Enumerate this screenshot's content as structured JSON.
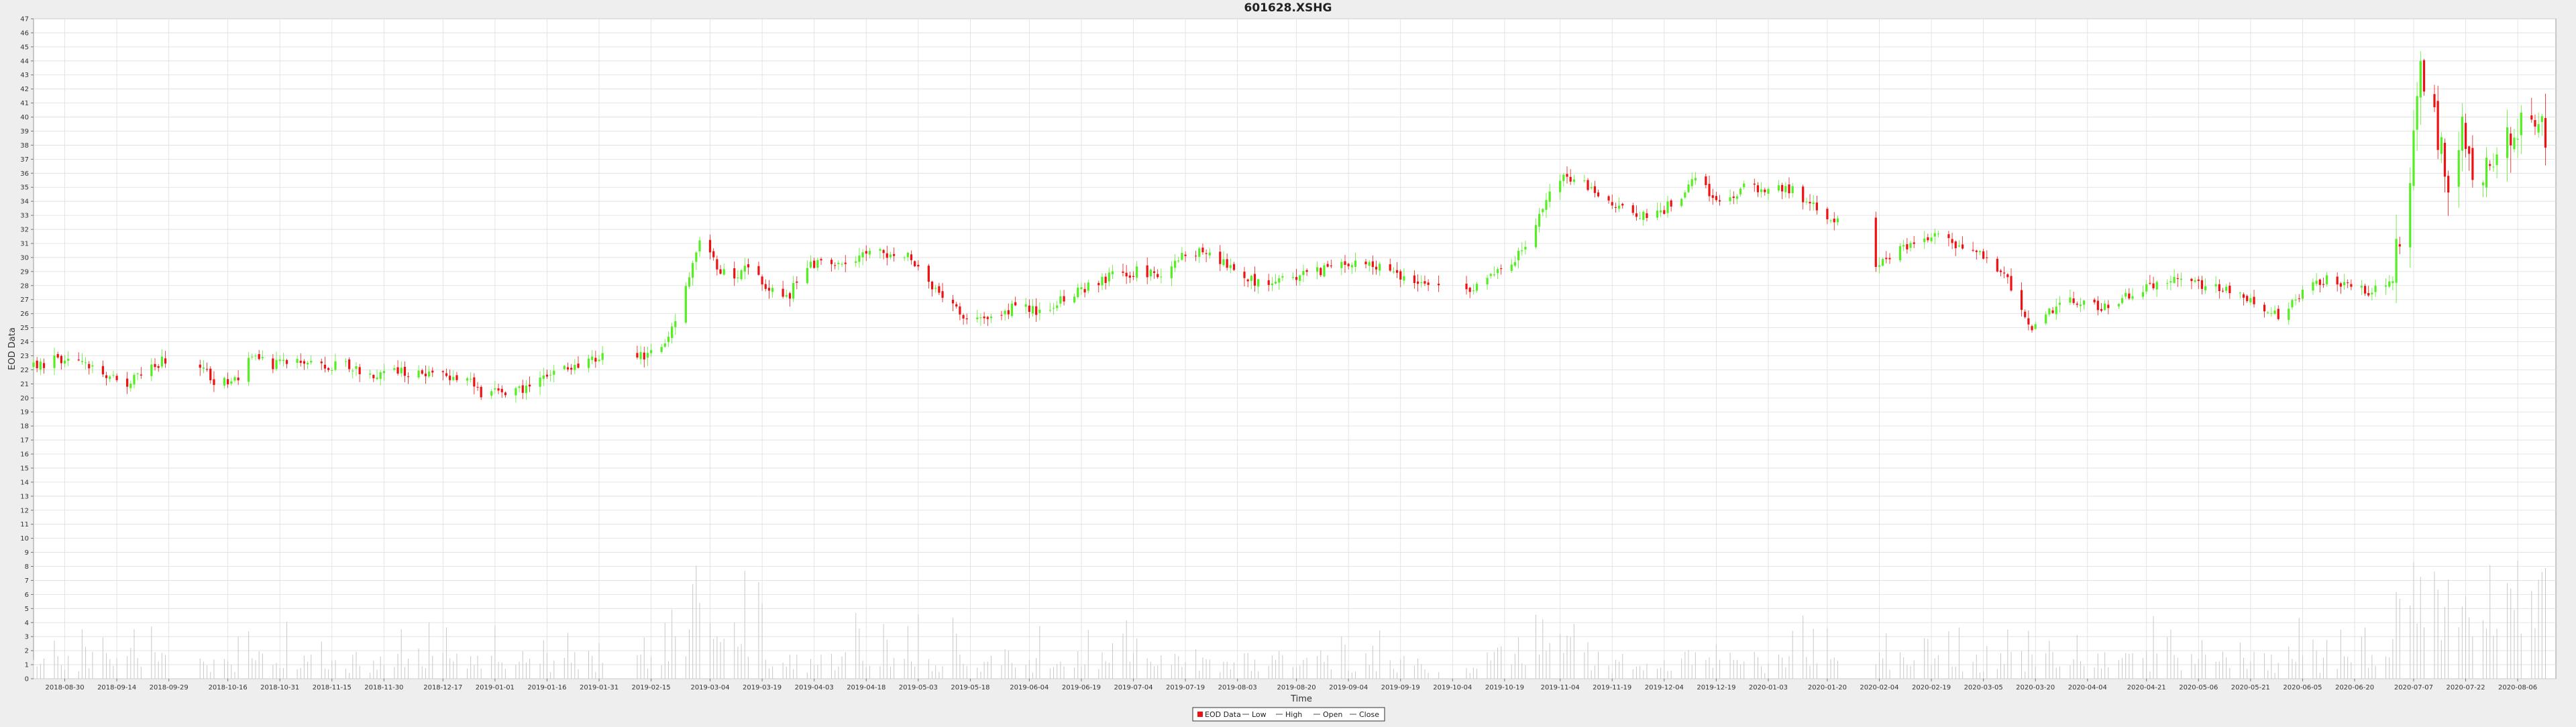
{
  "chart_data": {
    "type": "candlestick",
    "title": "601628.XSHG",
    "xlabel": "Time",
    "ylabel": "EOD Data",
    "ylim": [
      0,
      47
    ],
    "y_ticks": [
      0,
      1,
      2,
      3,
      4,
      5,
      6,
      7,
      8,
      9,
      10,
      11,
      12,
      13,
      14,
      15,
      16,
      17,
      18,
      19,
      20,
      21,
      22,
      23,
      24,
      25,
      26,
      27,
      28,
      29,
      30,
      31,
      32,
      33,
      34,
      35,
      36,
      37,
      38,
      39,
      40,
      41,
      42,
      43,
      44,
      45,
      46,
      47
    ],
    "grid": true,
    "x_tick_labels": [
      "2018-08-30",
      "2018-09-14",
      "2018-09-29",
      "2018-10-16",
      "2018-10-31",
      "2018-11-15",
      "2018-11-30",
      "2018-12-17",
      "2019-01-01",
      "2019-01-16",
      "2019-01-31",
      "2019-02-15",
      "2019-03-04",
      "2019-03-19",
      "2019-04-03",
      "2019-04-18",
      "2019-05-03",
      "2019-05-18",
      "2019-06-04",
      "2019-06-19",
      "2019-07-04",
      "2019-07-19",
      "2019-08-03",
      "2019-08-20",
      "2019-09-04",
      "2019-09-19",
      "2019-10-04",
      "2019-10-19",
      "2019-11-04",
      "2019-11-19",
      "2019-12-04",
      "2019-12-19",
      "2020-01-03",
      "2020-01-20",
      "2020-02-04",
      "2020-02-19",
      "2020-03-05",
      "2020-03-20",
      "2020-04-04",
      "2020-04-21",
      "2020-05-06",
      "2020-05-21",
      "2020-06-05",
      "2020-06-20",
      "2020-07-07",
      "2020-07-22",
      "2020-08-06"
    ],
    "close_path": [
      [
        "2018-08-21",
        22.2
      ],
      [
        "2018-08-27",
        22.7
      ],
      [
        "2018-09-03",
        22.5
      ],
      [
        "2018-09-10",
        21.6
      ],
      [
        "2018-09-17",
        21.0
      ],
      [
        "2018-09-21",
        21.6
      ],
      [
        "2018-09-28",
        22.8
      ],
      [
        "2018-10-08",
        22.4
      ],
      [
        "2018-10-12",
        21.2
      ],
      [
        "2018-10-19",
        21.4
      ],
      [
        "2018-10-22",
        23.2
      ],
      [
        "2018-10-29",
        22.4
      ],
      [
        "2018-11-05",
        22.6
      ],
      [
        "2018-11-12",
        22.2
      ],
      [
        "2018-11-19",
        22.5
      ],
      [
        "2018-11-26",
        21.6
      ],
      [
        "2018-12-03",
        22.1
      ],
      [
        "2018-12-10",
        21.7
      ],
      [
        "2018-12-17",
        21.5
      ],
      [
        "2018-12-24",
        21.4
      ],
      [
        "2018-12-28",
        20.4
      ],
      [
        "2019-01-04",
        20.3
      ],
      [
        "2019-01-11",
        20.6
      ],
      [
        "2019-01-18",
        21.8
      ],
      [
        "2019-01-25",
        22.2
      ],
      [
        "2019-02-01",
        22.9
      ],
      [
        "2019-02-11",
        22.9
      ],
      [
        "2019-02-18",
        23.5
      ],
      [
        "2019-02-22",
        25.5
      ],
      [
        "2019-02-25",
        28.0
      ],
      [
        "2019-03-01",
        31.0
      ],
      [
        "2019-03-07",
        29.0
      ],
      [
        "2019-03-12",
        28.6
      ],
      [
        "2019-03-15",
        29.5
      ],
      [
        "2019-03-22",
        27.5
      ],
      [
        "2019-03-26",
        27.0
      ],
      [
        "2019-04-01",
        29.5
      ],
      [
        "2019-04-08",
        29.8
      ],
      [
        "2019-04-12",
        29.5
      ],
      [
        "2019-04-19",
        30.5
      ],
      [
        "2019-04-26",
        30.0
      ],
      [
        "2019-04-30",
        30.3
      ],
      [
        "2019-05-06",
        28.5
      ],
      [
        "2019-05-10",
        26.8
      ],
      [
        "2019-05-17",
        25.8
      ],
      [
        "2019-05-24",
        25.5
      ],
      [
        "2019-05-31",
        26.5
      ],
      [
        "2019-06-06",
        26.2
      ],
      [
        "2019-06-14",
        27.0
      ],
      [
        "2019-06-21",
        28.0
      ],
      [
        "2019-06-28",
        28.7
      ],
      [
        "2019-07-05",
        29.0
      ],
      [
        "2019-07-12",
        28.8
      ],
      [
        "2019-07-19",
        30.3
      ],
      [
        "2019-07-26",
        30.3
      ],
      [
        "2019-08-02",
        29.0
      ],
      [
        "2019-08-09",
        28.2
      ],
      [
        "2019-08-16",
        28.5
      ],
      [
        "2019-08-23",
        28.9
      ],
      [
        "2019-08-30",
        29.2
      ],
      [
        "2019-09-06",
        29.5
      ],
      [
        "2019-09-13",
        29.3
      ],
      [
        "2019-09-20",
        28.6
      ],
      [
        "2019-09-27",
        27.8
      ],
      [
        "2019-10-08",
        27.6
      ],
      [
        "2019-10-15",
        28.8
      ],
      [
        "2019-10-22",
        30.0
      ],
      [
        "2019-10-28",
        32.0
      ],
      [
        "2019-11-01",
        35.0
      ],
      [
        "2019-11-05",
        36.0
      ],
      [
        "2019-11-12",
        35.0
      ],
      [
        "2019-11-18",
        33.8
      ],
      [
        "2019-11-25",
        33.0
      ],
      [
        "2019-12-02",
        33.0
      ],
      [
        "2019-12-09",
        34.5
      ],
      [
        "2019-12-13",
        35.5
      ],
      [
        "2019-12-20",
        34.0
      ],
      [
        "2019-12-27",
        35.0
      ],
      [
        "2020-01-03",
        35.0
      ],
      [
        "2020-01-10",
        34.8
      ],
      [
        "2020-01-17",
        33.5
      ],
      [
        "2020-01-23",
        32.5
      ],
      [
        "2020-02-03",
        29.5
      ],
      [
        "2020-02-10",
        30.5
      ],
      [
        "2020-02-17",
        31.0
      ],
      [
        "2020-02-21",
        32.0
      ],
      [
        "2020-02-28",
        30.5
      ],
      [
        "2020-03-06",
        30.0
      ],
      [
        "2020-03-13",
        28.0
      ],
      [
        "2020-03-19",
        25.0
      ],
      [
        "2020-03-23",
        26.0
      ],
      [
        "2020-03-30",
        26.8
      ],
      [
        "2020-04-10",
        26.5
      ],
      [
        "2020-04-17",
        27.5
      ],
      [
        "2020-04-24",
        28.0
      ],
      [
        "2020-04-30",
        28.5
      ],
      [
        "2020-05-08",
        28.0
      ],
      [
        "2020-05-15",
        27.5
      ],
      [
        "2020-05-22",
        26.8
      ],
      [
        "2020-05-29",
        25.8
      ],
      [
        "2020-06-05",
        27.5
      ],
      [
        "2020-06-12",
        28.5
      ],
      [
        "2020-06-19",
        28.0
      ],
      [
        "2020-06-24",
        27.6
      ],
      [
        "2020-07-01",
        28.2
      ],
      [
        "2020-07-03",
        32.0
      ],
      [
        "2020-07-07",
        38.0
      ],
      [
        "2020-07-09",
        44.0
      ],
      [
        "2020-07-13",
        40.0
      ],
      [
        "2020-07-17",
        35.0
      ],
      [
        "2020-07-21",
        39.0
      ],
      [
        "2020-07-24",
        36.0
      ],
      [
        "2020-07-31",
        37.0
      ],
      [
        "2020-08-05",
        39.0
      ],
      [
        "2020-08-10",
        40.0
      ],
      [
        "2020-08-14",
        39.0
      ]
    ],
    "series": [
      {
        "name": "EOD Data"
      },
      {
        "name": "Low"
      },
      {
        "name": "High"
      },
      {
        "name": "Open"
      },
      {
        "name": "Close"
      }
    ],
    "legend_position": "bottom-center",
    "colors": {
      "up": "#55ee22",
      "down": "#ee1111",
      "grid": "#dedede",
      "volume": "#c8c8c8",
      "background": "#ffffff"
    }
  }
}
